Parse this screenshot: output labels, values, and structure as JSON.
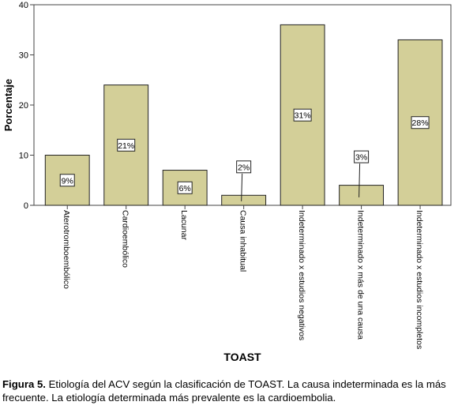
{
  "chart_data": {
    "type": "bar",
    "xlabel": "TOAST",
    "ylabel": "Porcentaje",
    "ylim": [
      0,
      40
    ],
    "yticks": [
      0,
      10,
      20,
      30,
      40
    ],
    "grid": false,
    "bar_color": "#d3cf98",
    "categories": [
      "Aterotrombo­embólico",
      "Cardioembólico",
      "Lacunar",
      "Causa inhabitual",
      "Indeterminado x estudios negativos",
      "Indeterminado x más de una causa",
      "Indeterminado x estudios incompletos"
    ],
    "values": [
      10,
      24,
      7,
      2,
      36,
      4,
      33
    ],
    "data_labels": [
      "9%",
      "21%",
      "6%",
      "2%",
      "31%",
      "3%",
      "28%"
    ]
  },
  "caption": {
    "label": "Figura 5.",
    "text": " Etiología del ACV según la clasificación de TOAST. La causa indeterminada es la más frecuente. La etiología determinada más prevalente es la cardioembolia."
  }
}
